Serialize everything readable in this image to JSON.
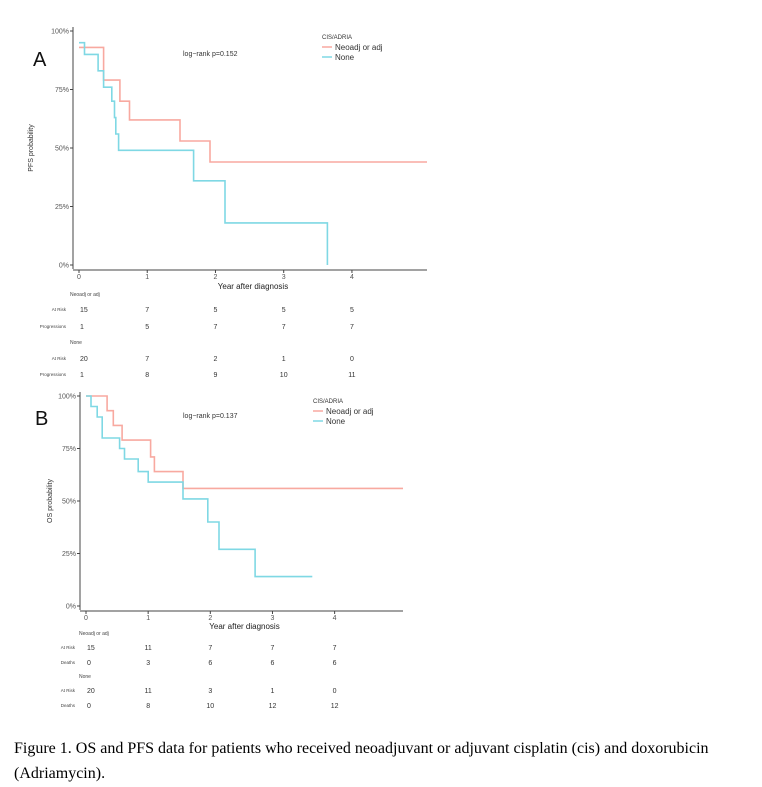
{
  "chart_data": [
    {
      "type": "line",
      "panel_label": "A",
      "ylabel": "PFS probability",
      "xlabel": "Year after diagnosis",
      "y_ticks": [
        "0%",
        "25%",
        "50%",
        "75%",
        "100%"
      ],
      "x_ticks": [
        "0",
        "1",
        "2",
        "3",
        "4"
      ],
      "xlim": [
        0,
        5.1
      ],
      "ylim": [
        0,
        1
      ],
      "annotation": "log−rank p=0.152",
      "legend_title": "CIS/ADRIA",
      "legend_position": "top-right",
      "grid": false,
      "series": [
        {
          "name": "Neoadj or adj",
          "color": "#f8a9a0",
          "x": [
            0,
            0.36,
            0.36,
            0.6,
            0.6,
            0.74,
            0.74,
            1.48,
            1.48,
            1.92,
            1.92,
            5.1
          ],
          "y": [
            0.93,
            0.93,
            0.79,
            0.79,
            0.7,
            0.7,
            0.62,
            0.62,
            0.53,
            0.53,
            0.44,
            0.44
          ]
        },
        {
          "name": "None",
          "color": "#7fd8e4",
          "x": [
            0,
            0.08,
            0.08,
            0.28,
            0.28,
            0.36,
            0.36,
            0.48,
            0.48,
            0.52,
            0.52,
            0.54,
            0.54,
            0.58,
            0.58,
            1.68,
            1.68,
            2.14,
            2.14,
            3.64,
            3.64
          ],
          "y": [
            0.95,
            0.95,
            0.9,
            0.9,
            0.83,
            0.83,
            0.76,
            0.76,
            0.7,
            0.7,
            0.63,
            0.63,
            0.56,
            0.56,
            0.49,
            0.49,
            0.36,
            0.36,
            0.18,
            0.18,
            0.0
          ]
        }
      ],
      "risk_table": {
        "x": [
          0,
          1,
          2,
          3,
          4
        ],
        "groups": [
          {
            "name": "Neoadj or adj",
            "rows": [
              {
                "label": "At Risk",
                "values": [
                  "15",
                  "7",
                  "5",
                  "5",
                  "5"
                ]
              },
              {
                "label": "Progressions",
                "values": [
                  "1",
                  "5",
                  "7",
                  "7",
                  "7"
                ]
              }
            ]
          },
          {
            "name": "None",
            "rows": [
              {
                "label": "At Risk",
                "values": [
                  "20",
                  "7",
                  "2",
                  "1",
                  "0"
                ]
              },
              {
                "label": "Progressions",
                "values": [
                  "1",
                  "8",
                  "9",
                  "10",
                  "11"
                ]
              }
            ]
          }
        ]
      }
    },
    {
      "type": "line",
      "panel_label": "B",
      "ylabel": "OS probability",
      "xlabel": "Year after diagnosis",
      "y_ticks": [
        "0%",
        "25%",
        "50%",
        "75%",
        "100%"
      ],
      "x_ticks": [
        "0",
        "1",
        "2",
        "3",
        "4"
      ],
      "xlim": [
        0,
        5.1
      ],
      "ylim": [
        0,
        1
      ],
      "annotation": "log−rank p=0.137",
      "legend_title": "CIS/ADRIA",
      "legend_position": "top-right",
      "grid": false,
      "series": [
        {
          "name": "Neoadj or adj",
          "color": "#f8a9a0",
          "x": [
            0,
            0.34,
            0.34,
            0.44,
            0.44,
            0.58,
            0.58,
            1.04,
            1.04,
            1.1,
            1.1,
            1.56,
            1.56,
            5.1
          ],
          "y": [
            1.0,
            1.0,
            0.93,
            0.93,
            0.86,
            0.86,
            0.79,
            0.79,
            0.71,
            0.71,
            0.64,
            0.64,
            0.56,
            0.56
          ]
        },
        {
          "name": "None",
          "color": "#7fd8e4",
          "x": [
            0,
            0.08,
            0.08,
            0.18,
            0.18,
            0.26,
            0.26,
            0.54,
            0.54,
            0.62,
            0.62,
            0.84,
            0.84,
            1.0,
            1.0,
            1.56,
            1.56,
            1.96,
            1.96,
            2.14,
            2.14,
            2.72,
            2.72,
            3.64
          ],
          "y": [
            1.0,
            1.0,
            0.95,
            0.95,
            0.9,
            0.9,
            0.8,
            0.8,
            0.75,
            0.75,
            0.7,
            0.7,
            0.64,
            0.64,
            0.59,
            0.59,
            0.51,
            0.51,
            0.4,
            0.4,
            0.27,
            0.27,
            0.14,
            0.14
          ]
        }
      ],
      "risk_table": {
        "x": [
          0,
          1,
          2,
          3,
          4
        ],
        "groups": [
          {
            "name": "Neoadj or adj",
            "rows": [
              {
                "label": "At Risk",
                "values": [
                  "15",
                  "11",
                  "7",
                  "7",
                  "7"
                ]
              },
              {
                "label": "Deaths",
                "values": [
                  "0",
                  "3",
                  "6",
                  "6",
                  "6"
                ]
              }
            ]
          },
          {
            "name": "None",
            "rows": [
              {
                "label": "At Risk",
                "values": [
                  "20",
                  "11",
                  "3",
                  "1",
                  "0"
                ]
              },
              {
                "label": "Deaths",
                "values": [
                  "0",
                  "8",
                  "10",
                  "12",
                  "12"
                ]
              }
            ]
          }
        ]
      }
    }
  ],
  "caption": "Figure 1. OS and PFS data for patients who received neoadjuvant or adjuvant cisplatin (cis) and doxorubicin (Adriamycin)."
}
